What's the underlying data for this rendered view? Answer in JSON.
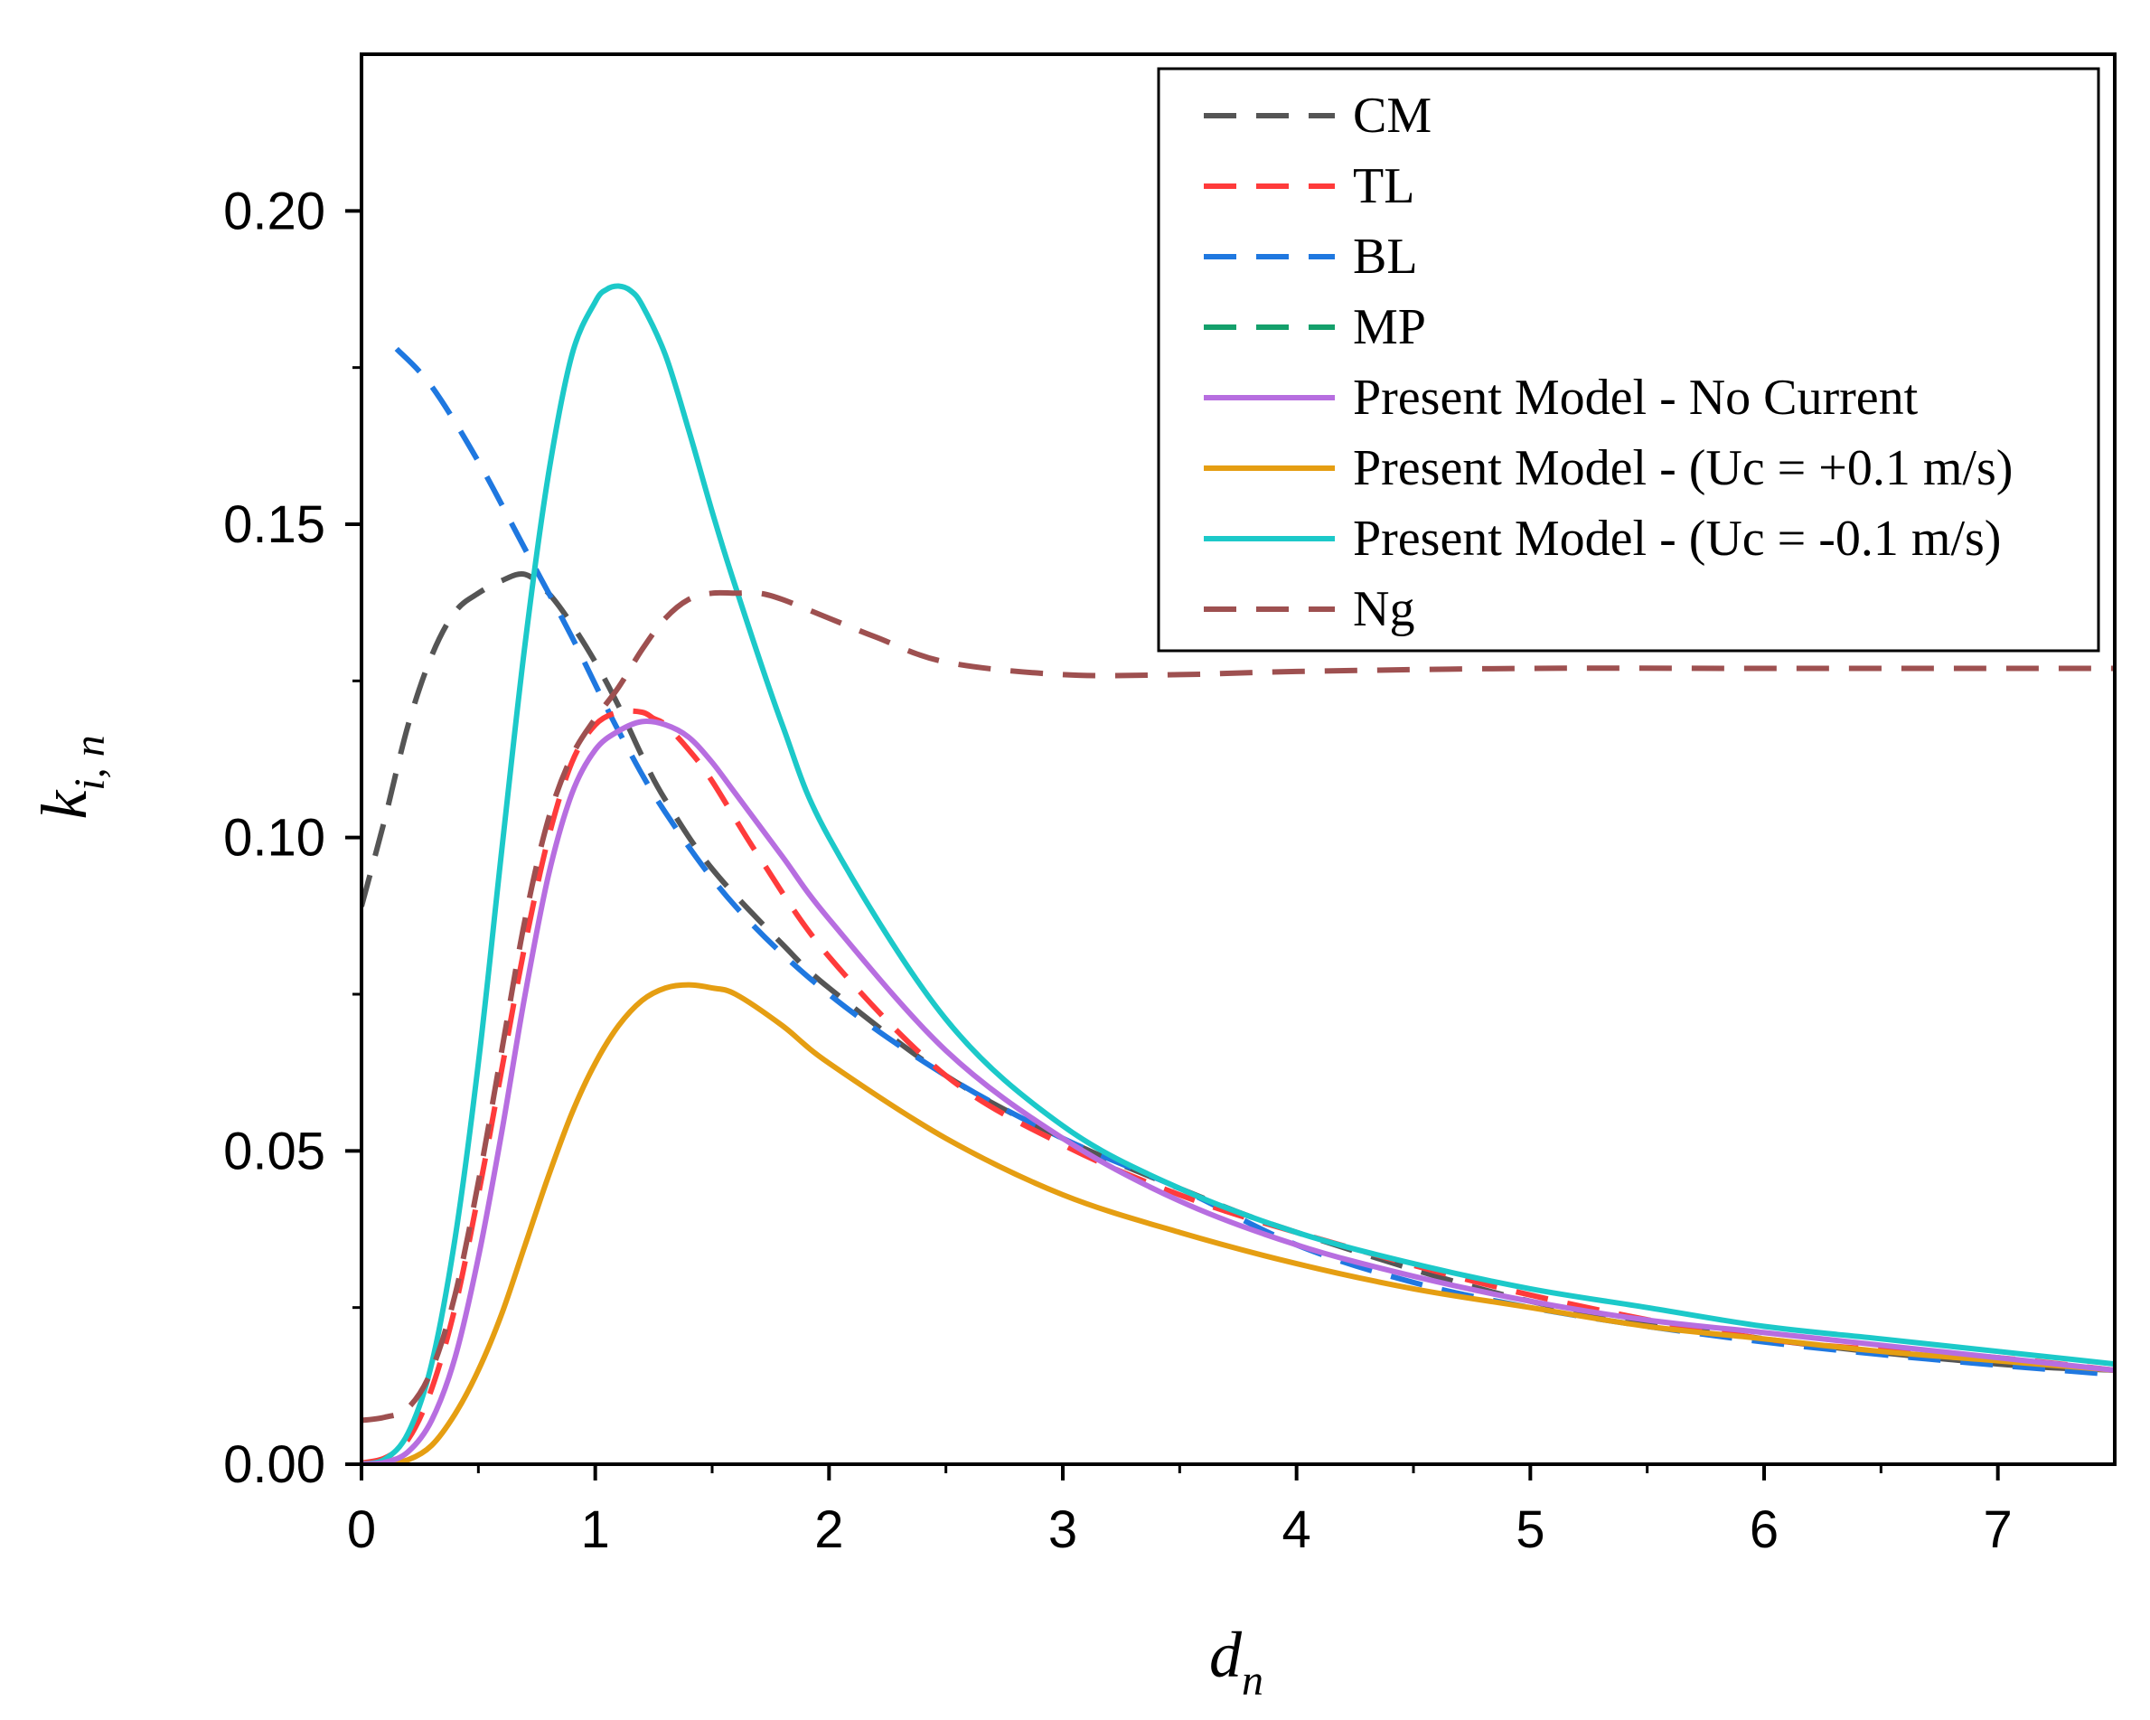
{
  "chart_data": {
    "type": "line",
    "title": "",
    "xlabel": {
      "main": "d",
      "sub": "n"
    },
    "ylabel": {
      "main": "k",
      "sub": "i, n"
    },
    "xlim": [
      0,
      7.5
    ],
    "ylim": [
      0,
      0.225
    ],
    "x_ticks": [
      0,
      1,
      2,
      3,
      4,
      5,
      6,
      7
    ],
    "x_tick_labels": [
      "0",
      "1",
      "2",
      "3",
      "4",
      "5",
      "6",
      "7"
    ],
    "y_ticks": [
      0,
      0.05,
      0.1,
      0.15,
      0.2
    ],
    "y_tick_labels": [
      "0.00",
      "0.05",
      "0.10",
      "0.15",
      "0.20"
    ],
    "grid": false,
    "legend_position": "top-right",
    "series": [
      {
        "name": "CM",
        "color": "#555555",
        "dashed": true,
        "x": [
          0,
          0.1,
          0.2,
          0.3,
          0.4,
          0.5,
          0.6,
          0.7,
          0.8,
          0.9,
          1.0,
          1.1,
          1.2,
          1.3,
          1.5,
          1.8,
          2.0,
          2.5,
          3.0,
          3.5,
          4.0,
          5.0,
          6.0,
          7.0,
          7.5
        ],
        "y": [
          0.089,
          0.103,
          0.118,
          0.129,
          0.136,
          0.139,
          0.141,
          0.142,
          0.139,
          0.134,
          0.128,
          0.121,
          0.113,
          0.106,
          0.095,
          0.083,
          0.076,
          0.062,
          0.052,
          0.044,
          0.037,
          0.026,
          0.02,
          0.016,
          0.015
        ]
      },
      {
        "name": "TL",
        "color": "#ff3b3b",
        "dashed": true,
        "x": [
          0,
          0.1,
          0.2,
          0.3,
          0.4,
          0.5,
          0.6,
          0.7,
          0.8,
          0.9,
          1.0,
          1.1,
          1.2,
          1.25,
          1.3,
          1.4,
          1.5,
          1.7,
          2.0,
          2.5,
          3.0,
          3.5,
          4.0,
          5.0,
          6.0,
          7.0,
          7.5
        ],
        "y": [
          0.0002,
          0.001,
          0.004,
          0.012,
          0.025,
          0.043,
          0.063,
          0.083,
          0.1,
          0.112,
          0.118,
          0.12,
          0.12,
          0.119,
          0.118,
          0.114,
          0.109,
          0.097,
          0.081,
          0.062,
          0.051,
          0.043,
          0.037,
          0.027,
          0.02,
          0.017,
          0.015
        ]
      },
      {
        "name": "BL",
        "color": "#1f78e0",
        "dashed": true,
        "x": [
          0.15,
          0.3,
          0.5,
          0.7,
          0.9,
          1.1,
          1.3,
          1.6,
          2.0,
          2.5,
          3.0,
          3.5,
          4.0,
          4.5,
          5.0,
          5.5,
          6.0,
          6.5,
          7.0,
          7.5
        ],
        "y": [
          0.178,
          0.172,
          0.16,
          0.146,
          0.132,
          0.117,
          0.104,
          0.089,
          0.075,
          0.062,
          0.052,
          0.044,
          0.035,
          0.029,
          0.025,
          0.022,
          0.0195,
          0.0175,
          0.0158,
          0.0143
        ]
      },
      {
        "name": "MP",
        "color": "#14a06b",
        "dashed": true,
        "x": [],
        "y": []
      },
      {
        "name": "Present Model - No Current",
        "color": "#b76ee0",
        "dashed": false,
        "x": [
          0,
          0.1,
          0.2,
          0.3,
          0.4,
          0.5,
          0.6,
          0.7,
          0.8,
          0.9,
          1.0,
          1.1,
          1.2,
          1.3,
          1.4,
          1.5,
          1.6,
          1.8,
          2.0,
          2.5,
          3.0,
          3.5,
          4.0,
          4.5,
          5.0,
          5.5,
          6.0,
          6.5,
          7.0,
          7.5
        ],
        "y": [
          0.0,
          0.0003,
          0.002,
          0.007,
          0.017,
          0.033,
          0.053,
          0.075,
          0.094,
          0.107,
          0.114,
          0.117,
          0.1185,
          0.118,
          0.116,
          0.112,
          0.107,
          0.097,
          0.087,
          0.066,
          0.052,
          0.042,
          0.035,
          0.03,
          0.026,
          0.023,
          0.021,
          0.019,
          0.017,
          0.015
        ]
      },
      {
        "name": "Present Model - (Uc = +0.1 m/s)",
        "color": "#e59e12",
        "dashed": false,
        "x": [
          0,
          0.1,
          0.2,
          0.3,
          0.4,
          0.5,
          0.6,
          0.7,
          0.8,
          0.9,
          1.0,
          1.1,
          1.2,
          1.3,
          1.4,
          1.5,
          1.6,
          1.8,
          2.0,
          2.5,
          3.0,
          3.5,
          4.0,
          4.5,
          5.0,
          5.5,
          6.0,
          6.5,
          7.0,
          7.5
        ],
        "y": [
          0.0,
          0.0001,
          0.0007,
          0.003,
          0.008,
          0.015,
          0.024,
          0.035,
          0.046,
          0.056,
          0.064,
          0.07,
          0.074,
          0.076,
          0.0765,
          0.076,
          0.075,
          0.07,
          0.064,
          0.052,
          0.043,
          0.037,
          0.032,
          0.028,
          0.025,
          0.022,
          0.02,
          0.018,
          0.0165,
          0.015
        ]
      },
      {
        "name": "Present Model - (Uc = -0.1 m/s)",
        "color": "#1cc9c9",
        "dashed": false,
        "x": [
          0,
          0.1,
          0.2,
          0.3,
          0.4,
          0.5,
          0.6,
          0.7,
          0.8,
          0.9,
          1.0,
          1.05,
          1.1,
          1.15,
          1.2,
          1.3,
          1.4,
          1.5,
          1.6,
          1.8,
          2.0,
          2.5,
          3.0,
          3.5,
          4.0,
          4.5,
          5.0,
          5.5,
          6.0,
          6.5,
          7.0,
          7.5
        ],
        "y": [
          0.0,
          0.0008,
          0.005,
          0.016,
          0.036,
          0.064,
          0.098,
          0.131,
          0.158,
          0.177,
          0.1855,
          0.1875,
          0.188,
          0.1873,
          0.185,
          0.177,
          0.165,
          0.152,
          0.14,
          0.118,
          0.1,
          0.071,
          0.054,
          0.044,
          0.037,
          0.032,
          0.028,
          0.025,
          0.022,
          0.02,
          0.018,
          0.016
        ]
      },
      {
        "name": "Ng",
        "color": "#9e5050",
        "dashed": true,
        "x": [
          0,
          0.1,
          0.2,
          0.3,
          0.4,
          0.5,
          0.6,
          0.7,
          0.8,
          0.9,
          1.0,
          1.1,
          1.2,
          1.3,
          1.4,
          1.5,
          1.6,
          1.7,
          1.8,
          2.0,
          2.2,
          2.5,
          3.0,
          3.5,
          4.0,
          5.0,
          6.0,
          7.0,
          7.5
        ],
        "y": [
          0.007,
          0.0075,
          0.009,
          0.015,
          0.027,
          0.045,
          0.066,
          0.087,
          0.103,
          0.113,
          0.119,
          0.124,
          0.13,
          0.135,
          0.138,
          0.139,
          0.139,
          0.139,
          0.138,
          0.135,
          0.132,
          0.128,
          0.126,
          0.126,
          0.1265,
          0.127,
          0.127,
          0.127,
          0.127
        ]
      }
    ]
  }
}
